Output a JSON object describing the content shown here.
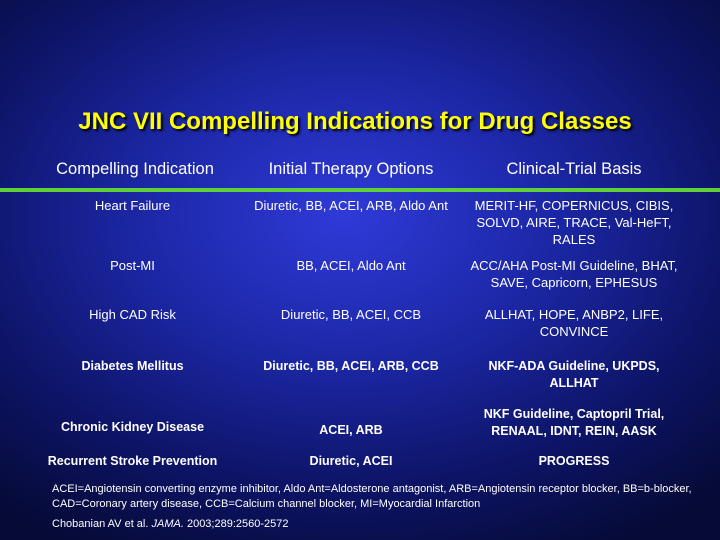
{
  "title": "JNC VII Compelling Indications for Drug Classes",
  "headers": [
    "Compelling Indication",
    "Initial Therapy Options",
    "Clinical-Trial Basis"
  ],
  "rows": [
    {
      "indication": "Heart Failure",
      "therapy": "Diuretic, BB, ACEI, ARB, Aldo Ant",
      "basis": "MERIT-HF, COPERNICUS, CIBIS, SOLVD, AIRE, TRACE, Val-HeFT, RALES",
      "bold": false
    },
    {
      "indication": "Post-MI",
      "therapy": "BB, ACEI, Aldo Ant",
      "basis": "ACC/AHA Post-MI Guideline, BHAT, SAVE, Capricorn, EPHESUS",
      "bold": false
    },
    {
      "indication": "High CAD Risk",
      "therapy": "Diuretic, BB, ACEI, CCB",
      "basis": "ALLHAT, HOPE, ANBP2, LIFE, CONVINCE",
      "bold": false
    },
    {
      "indication": "Diabetes Mellitus",
      "therapy": "Diuretic, BB, ACEI, ARB, CCB",
      "basis": "NKF-ADA Guideline, UKPDS, ALLHAT",
      "bold": true
    },
    {
      "indication": "Chronic Kidney Disease",
      "therapy": "ACEI, ARB",
      "basis": "NKF Guideline, Captopril Trial, RENAAL, IDNT, REIN, AASK",
      "bold": true
    },
    {
      "indication": "Recurrent Stroke Prevention",
      "therapy": "Diuretic, ACEI",
      "basis": "PROGRESS",
      "bold": true
    }
  ],
  "footnote": "ACEI=Angiotensin converting enzyme inhibitor, Aldo Ant=Aldosterone antagonist, ARB=Angiotensin receptor blocker, BB=b-blocker, CAD=Coronary artery disease, CCB=Calcium channel blocker, MI=Myocardial Infarction",
  "citation": {
    "authors": "Chobanian AV et al.",
    "journal": "JAMA.",
    "details": "2003;289:2560-2572"
  }
}
